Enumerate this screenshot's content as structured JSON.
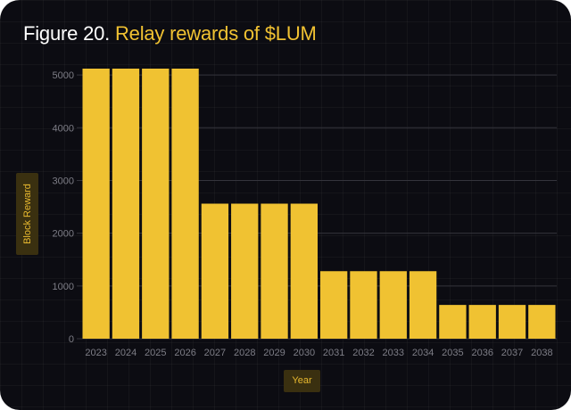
{
  "header": {
    "figure_prefix": "Figure 20.",
    "title": "Relay rewards of $LUM"
  },
  "colors": {
    "background": "#0c0c12",
    "bar": "#f0c232",
    "title_accent": "#f1c232",
    "label_box": "#3a3010",
    "label_text": "#e8b92f",
    "tick_text": "#7d7d86",
    "gridline": "#34343c"
  },
  "chart_data": {
    "type": "bar",
    "categories": [
      "2023",
      "2024",
      "2025",
      "2026",
      "2027",
      "2028",
      "2029",
      "2030",
      "2031",
      "2032",
      "2033",
      "2034",
      "2035",
      "2036",
      "2037",
      "2038"
    ],
    "values": [
      5120,
      5120,
      5120,
      5120,
      2560,
      2560,
      2560,
      2560,
      1280,
      1280,
      1280,
      1280,
      640,
      640,
      640,
      640
    ],
    "xlabel": "Year",
    "ylabel": "Block Reward",
    "yticks": [
      0,
      1000,
      2000,
      3000,
      4000,
      5000
    ],
    "ylim": [
      0,
      5120
    ],
    "grid": "horizontal"
  }
}
